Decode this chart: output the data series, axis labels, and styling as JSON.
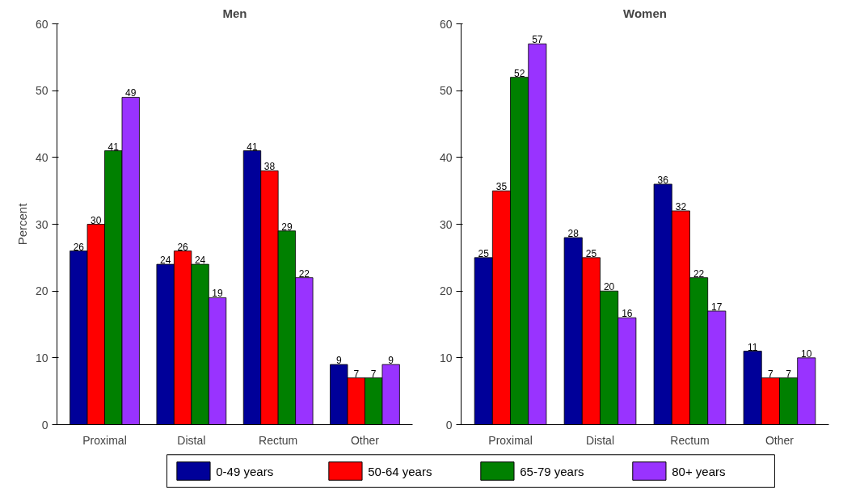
{
  "chart_data": [
    {
      "type": "bar",
      "title": "Men",
      "ylabel": "Percent",
      "categories": [
        "Proximal",
        "Distal",
        "Rectum",
        "Other"
      ],
      "ylim": [
        0,
        60
      ],
      "yticks": [
        0,
        10,
        20,
        30,
        40,
        50,
        60
      ],
      "grid": false,
      "data_labels": true,
      "legend": "bottom",
      "series": [
        {
          "name": "0-49 years",
          "color": "#000099",
          "values": [
            26,
            24,
            41,
            9
          ]
        },
        {
          "name": "50-64 years",
          "color": "#ff0000",
          "values": [
            30,
            26,
            38,
            7
          ]
        },
        {
          "name": "65-79 years",
          "color": "#008000",
          "values": [
            41,
            24,
            29,
            7
          ]
        },
        {
          "name": "80+ years",
          "color": "#9933ff",
          "values": [
            49,
            19,
            22,
            9
          ]
        }
      ]
    },
    {
      "type": "bar",
      "title": "Women",
      "categories": [
        "Proximal",
        "Distal",
        "Rectum",
        "Other"
      ],
      "ylim": [
        0,
        60
      ],
      "yticks": [
        0,
        10,
        20,
        30,
        40,
        50,
        60
      ],
      "grid": false,
      "data_labels": true,
      "series": [
        {
          "color": "#000099",
          "values": [
            25,
            28,
            36,
            11
          ]
        },
        {
          "color": "#ff0000",
          "values": [
            35,
            25,
            32,
            7
          ]
        },
        {
          "color": "#008000",
          "values": [
            52,
            20,
            22,
            7
          ]
        },
        {
          "color": "#9933ff",
          "values": [
            57,
            16,
            17,
            10
          ]
        }
      ]
    }
  ]
}
